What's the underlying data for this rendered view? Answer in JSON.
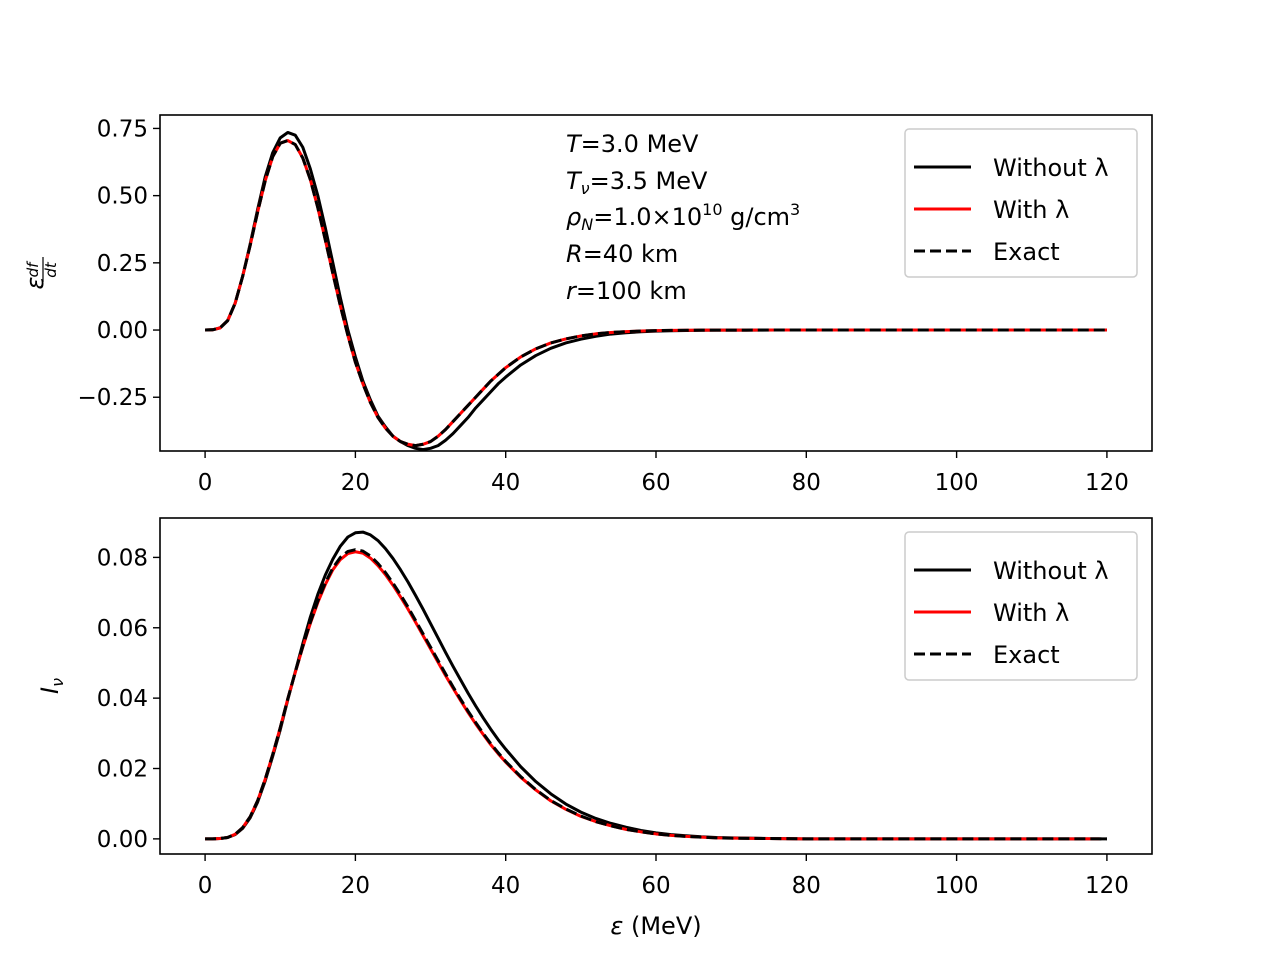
{
  "chart_data": [
    {
      "type": "line",
      "panel": "top",
      "xlabel": "",
      "ylabel": "ε²df/dt",
      "ylabel_parts": {
        "base": "ε",
        "sup_num": "df",
        "sup_den": "dt"
      },
      "xlim": [
        -6,
        126
      ],
      "ylim": [
        -0.45,
        0.8
      ],
      "xticks": [
        0,
        20,
        40,
        60,
        80,
        100,
        120
      ],
      "xtick_labels": [
        "0",
        "20",
        "40",
        "60",
        "80",
        "100",
        "120"
      ],
      "yticks": [
        -0.25,
        0.0,
        0.25,
        0.5,
        0.75
      ],
      "ytick_labels": [
        "−0.25",
        "0.00",
        "0.25",
        "0.50",
        "0.75"
      ],
      "legend_position": "top-right",
      "annotations": [
        {
          "it": "T",
          "sub": "",
          "rest": "=3.0 MeV"
        },
        {
          "it": "T",
          "sub": "ν",
          "rest": "=3.5 MeV"
        },
        {
          "it": "ρ",
          "sub": "N",
          "rest": "=1.0×10",
          "sup": "10",
          "rest2": " g/cm",
          "sup2": "3"
        },
        {
          "it": "R",
          "sub": "",
          "rest": "=40 km"
        },
        {
          "it": "r",
          "sub": "",
          "rest": "=100 km"
        }
      ],
      "series": [
        {
          "name": "Without λ",
          "color": "#000000",
          "style": "solid",
          "x": [
            0,
            1,
            2,
            3,
            4,
            5,
            6,
            7,
            8,
            9,
            10,
            11,
            12,
            13,
            14,
            15,
            16,
            17,
            18,
            19,
            20,
            21,
            22,
            23,
            24,
            25,
            26,
            27,
            28,
            29,
            30,
            31,
            32,
            33,
            34,
            35,
            36,
            37,
            38,
            39,
            40,
            42,
            44,
            46,
            48,
            50,
            52,
            54,
            56,
            58,
            60,
            62,
            64,
            66,
            68,
            70,
            72,
            74,
            76,
            78,
            80,
            85,
            90,
            95,
            100,
            105,
            110,
            115,
            120
          ],
          "y": [
            0.0,
            0.001,
            0.008,
            0.035,
            0.1,
            0.2,
            0.32,
            0.45,
            0.57,
            0.66,
            0.715,
            0.735,
            0.725,
            0.68,
            0.6,
            0.5,
            0.38,
            0.25,
            0.12,
            0.0,
            -0.1,
            -0.19,
            -0.26,
            -0.32,
            -0.36,
            -0.395,
            -0.415,
            -0.43,
            -0.44,
            -0.445,
            -0.44,
            -0.43,
            -0.41,
            -0.385,
            -0.355,
            -0.325,
            -0.29,
            -0.26,
            -0.23,
            -0.2,
            -0.175,
            -0.13,
            -0.095,
            -0.068,
            -0.048,
            -0.034,
            -0.023,
            -0.015,
            -0.01,
            -0.0065,
            -0.004,
            -0.0025,
            -0.0015,
            -0.0009,
            -0.0005,
            -0.0003,
            -0.0002,
            -0.0001,
            0.0,
            0.0,
            0.0,
            0.0,
            0.0,
            0.0,
            0.0,
            0.0,
            0.0,
            0.0,
            0.0
          ]
        },
        {
          "name": "With λ",
          "color": "#ff0000",
          "style": "solid",
          "x": [
            0,
            1,
            2,
            3,
            4,
            5,
            6,
            7,
            8,
            9,
            10,
            11,
            12,
            13,
            14,
            15,
            16,
            17,
            18,
            19,
            20,
            21,
            22,
            23,
            24,
            25,
            26,
            27,
            28,
            29,
            30,
            31,
            32,
            33,
            34,
            35,
            36,
            37,
            38,
            39,
            40,
            42,
            44,
            46,
            48,
            50,
            52,
            54,
            56,
            58,
            60,
            62,
            64,
            66,
            68,
            70,
            72,
            74,
            76,
            78,
            80,
            85,
            90,
            95,
            100,
            105,
            110,
            115,
            120
          ],
          "y": [
            0.0,
            0.001,
            0.008,
            0.035,
            0.1,
            0.2,
            0.315,
            0.44,
            0.555,
            0.645,
            0.695,
            0.705,
            0.69,
            0.64,
            0.56,
            0.455,
            0.335,
            0.21,
            0.09,
            -0.02,
            -0.12,
            -0.2,
            -0.27,
            -0.325,
            -0.365,
            -0.395,
            -0.415,
            -0.425,
            -0.43,
            -0.425,
            -0.415,
            -0.395,
            -0.37,
            -0.34,
            -0.31,
            -0.28,
            -0.25,
            -0.22,
            -0.19,
            -0.165,
            -0.14,
            -0.1,
            -0.07,
            -0.048,
            -0.033,
            -0.022,
            -0.014,
            -0.009,
            -0.006,
            -0.0037,
            -0.0022,
            -0.0013,
            -0.0008,
            -0.0005,
            -0.0003,
            -0.0002,
            -0.0001,
            0.0,
            0.0,
            0.0,
            0.0,
            0.0,
            0.0,
            0.0,
            0.0,
            0.0,
            0.0,
            0.0,
            0.0
          ]
        },
        {
          "name": "Exact",
          "color": "#000000",
          "style": "dashed",
          "x": [
            0,
            1,
            2,
            3,
            4,
            5,
            6,
            7,
            8,
            9,
            10,
            11,
            12,
            13,
            14,
            15,
            16,
            17,
            18,
            19,
            20,
            21,
            22,
            23,
            24,
            25,
            26,
            27,
            28,
            29,
            30,
            31,
            32,
            33,
            34,
            35,
            36,
            37,
            38,
            39,
            40,
            42,
            44,
            46,
            48,
            50,
            52,
            54,
            56,
            58,
            60,
            62,
            64,
            66,
            68,
            70,
            72,
            74,
            76,
            78,
            80,
            85,
            90,
            95,
            100,
            105,
            110,
            115,
            120
          ],
          "y": [
            0.0,
            0.001,
            0.008,
            0.035,
            0.1,
            0.2,
            0.315,
            0.44,
            0.555,
            0.645,
            0.695,
            0.705,
            0.69,
            0.64,
            0.56,
            0.455,
            0.335,
            0.21,
            0.09,
            -0.02,
            -0.12,
            -0.2,
            -0.27,
            -0.325,
            -0.365,
            -0.395,
            -0.415,
            -0.425,
            -0.43,
            -0.425,
            -0.415,
            -0.395,
            -0.37,
            -0.34,
            -0.31,
            -0.28,
            -0.25,
            -0.22,
            -0.19,
            -0.165,
            -0.14,
            -0.1,
            -0.07,
            -0.048,
            -0.033,
            -0.022,
            -0.014,
            -0.009,
            -0.006,
            -0.0037,
            -0.0022,
            -0.0013,
            -0.0008,
            -0.0005,
            -0.0003,
            -0.0002,
            -0.0001,
            0.0,
            0.0,
            0.0,
            0.0,
            0.0,
            0.0,
            0.0,
            0.0,
            0.0,
            0.0,
            0.0,
            0.0
          ]
        }
      ]
    },
    {
      "type": "line",
      "panel": "bottom",
      "xlabel": "ε (MeV)",
      "xlabel_parts": {
        "it": "ε",
        "rest": " (MeV)"
      },
      "ylabel": "Iν",
      "ylabel_parts": {
        "it": "I",
        "sub": "ν"
      },
      "xlim": [
        -6,
        126
      ],
      "ylim": [
        -0.0043,
        0.0912
      ],
      "xticks": [
        0,
        20,
        40,
        60,
        80,
        100,
        120
      ],
      "xtick_labels": [
        "0",
        "20",
        "40",
        "60",
        "80",
        "100",
        "120"
      ],
      "yticks": [
        0.0,
        0.02,
        0.04,
        0.06,
        0.08
      ],
      "ytick_labels": [
        "0.00",
        "0.02",
        "0.04",
        "0.06",
        "0.08"
      ],
      "legend_position": "top-right",
      "series": [
        {
          "name": "Without λ",
          "color": "#000000",
          "style": "solid",
          "x": [
            0,
            1,
            2,
            3,
            4,
            5,
            6,
            7,
            8,
            9,
            10,
            11,
            12,
            13,
            14,
            15,
            16,
            17,
            18,
            19,
            20,
            21,
            22,
            23,
            24,
            25,
            26,
            27,
            28,
            29,
            30,
            31,
            32,
            33,
            34,
            35,
            36,
            37,
            38,
            39,
            40,
            42,
            44,
            46,
            48,
            50,
            52,
            54,
            56,
            58,
            60,
            62,
            64,
            66,
            68,
            70,
            75,
            80,
            85,
            90,
            95,
            100,
            105,
            110,
            115,
            120
          ],
          "y": [
            0.0,
            0.0,
            0.0001,
            0.0004,
            0.0012,
            0.003,
            0.006,
            0.0105,
            0.0165,
            0.0235,
            0.031,
            0.0395,
            0.0475,
            0.0555,
            0.063,
            0.0695,
            0.075,
            0.0795,
            0.0832,
            0.0858,
            0.087,
            0.0872,
            0.0864,
            0.0848,
            0.0825,
            0.0797,
            0.0765,
            0.073,
            0.0692,
            0.0653,
            0.0612,
            0.0571,
            0.053,
            0.049,
            0.0452,
            0.0414,
            0.0378,
            0.0344,
            0.0312,
            0.0282,
            0.0255,
            0.0205,
            0.0163,
            0.0128,
            0.0099,
            0.0076,
            0.0058,
            0.0044,
            0.0033,
            0.0024,
            0.0017,
            0.0012,
            0.0009,
            0.0006,
            0.0004,
            0.0003,
            0.0001,
            0.0,
            0.0,
            0.0,
            0.0,
            0.0,
            0.0,
            0.0,
            0.0,
            0.0
          ]
        },
        {
          "name": "With λ",
          "color": "#ff0000",
          "style": "solid",
          "x": [
            0,
            1,
            2,
            3,
            4,
            5,
            6,
            7,
            8,
            9,
            10,
            11,
            12,
            13,
            14,
            15,
            16,
            17,
            18,
            19,
            20,
            21,
            22,
            23,
            24,
            25,
            26,
            27,
            28,
            29,
            30,
            31,
            32,
            33,
            34,
            35,
            36,
            37,
            38,
            39,
            40,
            42,
            44,
            46,
            48,
            50,
            52,
            54,
            56,
            58,
            60,
            62,
            64,
            66,
            68,
            70,
            75,
            80,
            85,
            90,
            95,
            100,
            105,
            110,
            115,
            119
          ],
          "y": [
            0.0,
            0.0,
            0.0001,
            0.0004,
            0.0013,
            0.0032,
            0.0063,
            0.0109,
            0.017,
            0.024,
            0.0316,
            0.0398,
            0.0473,
            0.0545,
            0.0612,
            0.0672,
            0.0723,
            0.0765,
            0.0794,
            0.0811,
            0.0816,
            0.0812,
            0.0798,
            0.0777,
            0.0751,
            0.0721,
            0.0688,
            0.0653,
            0.0616,
            0.0578,
            0.054,
            0.0502,
            0.0464,
            0.0428,
            0.0393,
            0.0359,
            0.0327,
            0.0297,
            0.0268,
            0.0242,
            0.0218,
            0.0175,
            0.0139,
            0.0108,
            0.0084,
            0.0064,
            0.0049,
            0.0037,
            0.0027,
            0.002,
            0.0014,
            0.001,
            0.0007,
            0.0005,
            0.0003,
            0.0002,
            0.0001,
            0.0,
            0.0,
            0.0,
            0.0,
            0.0,
            0.0,
            0.0,
            0.0,
            0.0
          ]
        },
        {
          "name": "Exact",
          "color": "#000000",
          "style": "dashed",
          "x": [
            0,
            1,
            2,
            3,
            4,
            5,
            6,
            7,
            8,
            9,
            10,
            11,
            12,
            13,
            14,
            15,
            16,
            17,
            18,
            19,
            20,
            21,
            22,
            23,
            24,
            25,
            26,
            27,
            28,
            29,
            30,
            31,
            32,
            33,
            34,
            35,
            36,
            37,
            38,
            39,
            40,
            42,
            44,
            46,
            48,
            50,
            52,
            54,
            56,
            58,
            60,
            62,
            64,
            66,
            68,
            70,
            75,
            80,
            85,
            90,
            95,
            100,
            105,
            110,
            115,
            120
          ],
          "y": [
            0.0,
            0.0,
            0.0001,
            0.0004,
            0.0013,
            0.0032,
            0.0063,
            0.0109,
            0.017,
            0.024,
            0.0316,
            0.0398,
            0.0474,
            0.0547,
            0.0615,
            0.0676,
            0.0728,
            0.077,
            0.08,
            0.0817,
            0.0822,
            0.0818,
            0.0804,
            0.0783,
            0.0757,
            0.0727,
            0.0694,
            0.0659,
            0.0621,
            0.0583,
            0.0545,
            0.0507,
            0.0469,
            0.0432,
            0.0397,
            0.0363,
            0.0331,
            0.03,
            0.0271,
            0.0245,
            0.022,
            0.0177,
            0.014,
            0.0109,
            0.0085,
            0.0065,
            0.0049,
            0.0037,
            0.0027,
            0.002,
            0.0014,
            0.001,
            0.0007,
            0.0005,
            0.0003,
            0.0002,
            0.0001,
            0.0,
            0.0,
            0.0,
            0.0,
            0.0,
            0.0,
            0.0,
            0.0,
            0.0
          ]
        }
      ]
    }
  ]
}
